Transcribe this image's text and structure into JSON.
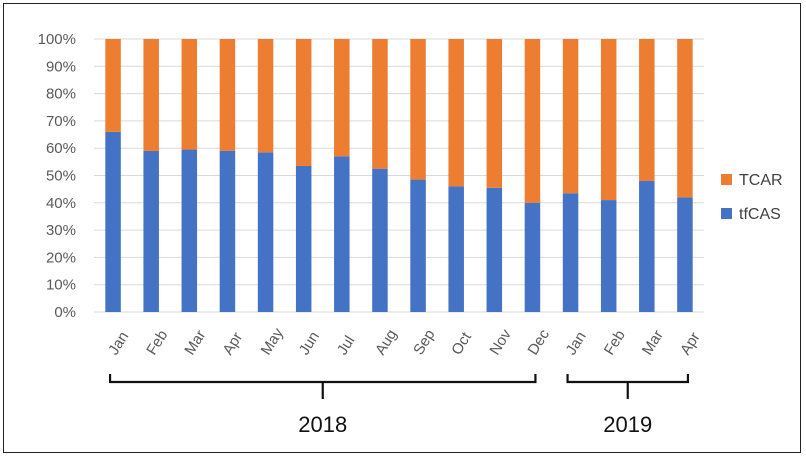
{
  "chart_data": {
    "type": "bar",
    "stacked": true,
    "percent": true,
    "categories": [
      "Jan",
      "Feb",
      "Mar",
      "Apr",
      "May",
      "Jun",
      "Jul",
      "Aug",
      "Sep",
      "Oct",
      "Nov",
      "Dec",
      "Jan",
      "Feb",
      "Mar",
      "Apr"
    ],
    "series": [
      {
        "name": "tfCAS",
        "color": "#4472C4",
        "values": [
          66,
          59,
          59.5,
          59,
          58.5,
          53.5,
          57,
          52.5,
          48.5,
          46,
          45.5,
          40,
          43.5,
          41,
          48,
          42
        ]
      },
      {
        "name": "TCAR",
        "color": "#ED7D31",
        "values": [
          34,
          41,
          40.5,
          41,
          41.5,
          46.5,
          43,
          47.5,
          51.5,
          54,
          54.5,
          60,
          56.5,
          59,
          52,
          58
        ]
      }
    ],
    "y_ticks": [
      "0%",
      "10%",
      "20%",
      "30%",
      "40%",
      "50%",
      "60%",
      "70%",
      "80%",
      "90%",
      "100%"
    ],
    "ylim": [
      0,
      100
    ],
    "grid": true,
    "legend_position": "right",
    "legend": [
      {
        "name": "TCAR",
        "color": "#ED7D31"
      },
      {
        "name": "tfCAS",
        "color": "#4472C4"
      }
    ],
    "year_groups": [
      {
        "label": "2018",
        "start_index": 0,
        "end_index": 11
      },
      {
        "label": "2019",
        "start_index": 12,
        "end_index": 15
      }
    ]
  }
}
